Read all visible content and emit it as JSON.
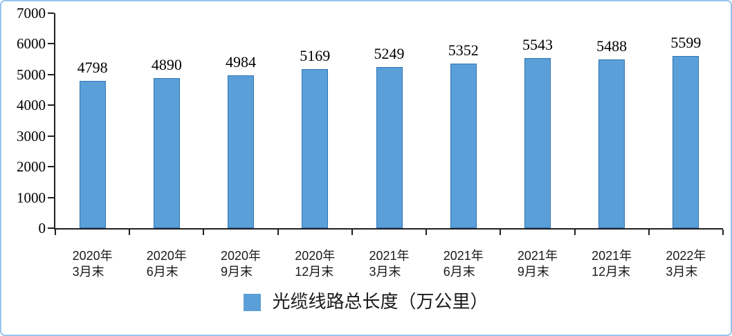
{
  "frame": {
    "border_color": "#94C6EF",
    "background": "#FFFFFF"
  },
  "chart_data": {
    "type": "bar",
    "title": "",
    "xlabel": "",
    "ylabel": "",
    "categories": [
      "2020年\n3月末",
      "2020年\n6月末",
      "2020年\n9月末",
      "2020年\n12月末",
      "2021年\n3月末",
      "2021年\n6月末",
      "2021年\n9月末",
      "2021年\n12月末",
      "2022年\n3月末"
    ],
    "values": [
      4798,
      4890,
      4984,
      5169,
      5249,
      5352,
      5543,
      5488,
      5599
    ],
    "ylim": [
      0,
      7000
    ],
    "yticks": [
      0,
      1000,
      2000,
      3000,
      4000,
      5000,
      6000,
      7000
    ],
    "grid": false,
    "value_labels_shown": true,
    "legend_position": "bottom",
    "legend_entries": [
      "光缆线路总长度（万公里）"
    ],
    "bar_color": "#5B9FD8",
    "bar_border_color": "#2E74B5",
    "axis_color": "#1F1F1F"
  },
  "legend": {
    "label": "光缆线路总长度（万公里）",
    "swatch_color": "#5B9FD8"
  }
}
